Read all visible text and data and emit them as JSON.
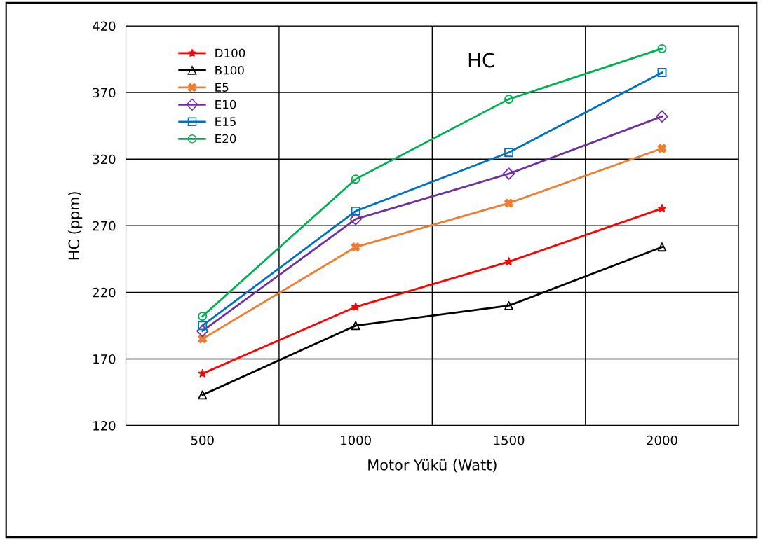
{
  "chart_data": {
    "type": "line",
    "title": "HC",
    "xlabel": "Motor Yükü (Watt)",
    "ylabel": "HC (ppm)",
    "categories": [
      "500",
      "1000",
      "1500",
      "2000"
    ],
    "series": [
      {
        "name": "D100",
        "color": "#ff0000",
        "marker": "star",
        "values": [
          159,
          209,
          243,
          283
        ]
      },
      {
        "name": "B100",
        "color": "#000000",
        "marker": "triangle",
        "values": [
          143,
          195,
          210,
          254
        ]
      },
      {
        "name": "E5",
        "color": "#ed7d31",
        "marker": "cross",
        "values": [
          185,
          254,
          287,
          328
        ]
      },
      {
        "name": "E10",
        "color": "#7030a0",
        "marker": "diamond",
        "values": [
          191,
          275,
          309,
          352
        ]
      },
      {
        "name": "E15",
        "color": "#0070c0",
        "marker": "square",
        "values": [
          195,
          281,
          325,
          385
        ]
      },
      {
        "name": "E20",
        "color": "#00b050",
        "marker": "circle",
        "values": [
          202,
          305,
          365,
          403
        ]
      }
    ],
    "ylim": [
      120,
      420
    ],
    "yticks": [
      120,
      170,
      220,
      270,
      320,
      370,
      420
    ],
    "grid": true,
    "legend": "top left"
  }
}
